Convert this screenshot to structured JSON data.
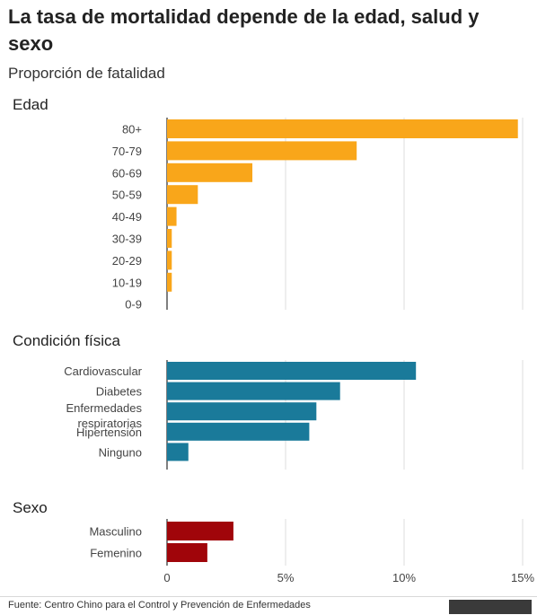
{
  "title": "La tasa de mortalidad depende de la edad, salud y sexo",
  "subtitle": "Proporción de fatalidad",
  "source": "Fuente: Centro Chino para el Control y Prevención de Enfermedades",
  "colors": {
    "edad": "#f9a61a",
    "condicion": "#1a7a9a",
    "sexo": "#a0050a",
    "grid": "#dddddd"
  },
  "chart_data": {
    "type": "bar",
    "orientation": "horizontal",
    "title": "La tasa de mortalidad depende de la edad, salud y sexo",
    "subtitle": "Proporción de fatalidad",
    "xlim": [
      0,
      15
    ],
    "x_ticks": [
      "0",
      "5%",
      "10%",
      "15%"
    ],
    "x_tick_values": [
      0,
      5,
      10,
      15
    ],
    "grid": true,
    "groups": [
      {
        "name": "Edad",
        "categories": [
          "80+",
          "70-79",
          "60-69",
          "50-59",
          "40-49",
          "30-39",
          "20-29",
          "10-19",
          "0-9"
        ],
        "values": [
          14.8,
          8.0,
          3.6,
          1.3,
          0.4,
          0.2,
          0.2,
          0.2,
          0.0
        ]
      },
      {
        "name": "Condición física",
        "categories": [
          "Cardiovascular",
          "Diabetes",
          "Enfermedades respiratorias",
          "Hipertensión",
          "Ninguno"
        ],
        "values": [
          10.5,
          7.3,
          6.3,
          6.0,
          0.9
        ]
      },
      {
        "name": "Sexo",
        "categories": [
          "Masculino",
          "Femenino"
        ],
        "values": [
          2.8,
          1.7
        ]
      }
    ]
  }
}
